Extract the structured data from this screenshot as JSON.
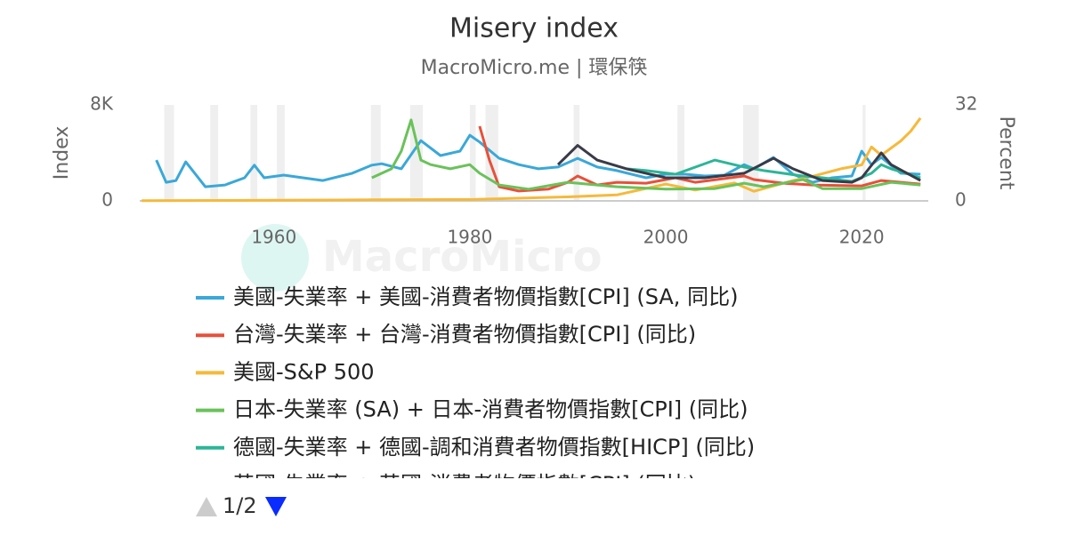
{
  "chart_data": {
    "type": "line",
    "title": "Misery index",
    "subtitle": "MacroMicro.me | 環保筷",
    "watermark": "MacroMicro",
    "y_label": "Index",
    "y2_label": "Percent",
    "xlim": [
      1946.3,
      2026.8
    ],
    "xticks": [
      1960,
      1980,
      2000,
      2020
    ],
    "ylim": [
      0,
      8000
    ],
    "yticks": [
      0,
      {
        "value": 8000,
        "label": "8K"
      }
    ],
    "y2lim": [
      0,
      32
    ],
    "y2ticks": [
      0,
      32
    ],
    "recessions": [
      [
        1948.8,
        1949.8
      ],
      [
        1953.5,
        1954.3
      ],
      [
        1957.6,
        1958.3
      ],
      [
        1960.3,
        1961.1
      ],
      [
        1969.9,
        1970.9
      ],
      [
        1973.9,
        1975.2
      ],
      [
        1980.0,
        1980.6
      ],
      [
        1981.6,
        1982.9
      ],
      [
        1990.6,
        1991.2
      ],
      [
        2001.2,
        2001.9
      ],
      [
        2007.9,
        2009.5
      ],
      [
        2020.1,
        2020.4
      ]
    ],
    "legend_page": "1/2",
    "series": [
      {
        "name": "美國-失業率 + 美國-消費者物價指數[CPI] (SA, 同比)",
        "color": "#3aa8d8",
        "axis": "y2",
        "x": [
          1948,
          1949,
          1950,
          1951,
          1953,
          1955,
          1957,
          1958,
          1959,
          1961,
          1965,
          1968,
          1970,
          1971,
          1973,
          1975,
          1977,
          1979,
          1980,
          1981,
          1983,
          1985,
          1987,
          1989,
          1991,
          1993,
          1995,
          1998,
          2000,
          2002,
          2004,
          2006,
          2008,
          2009,
          2011,
          2013,
          2015,
          2017,
          2019,
          2020,
          2021,
          2022,
          2024,
          2026
        ],
        "values": [
          13.6,
          6.2,
          6.8,
          13.0,
          4.7,
          5.3,
          7.7,
          11.9,
          7.7,
          8.6,
          6.8,
          9.2,
          11.9,
          12.4,
          10.7,
          20.1,
          15.1,
          16.6,
          21.9,
          19.6,
          14.2,
          12.1,
          10.7,
          11.3,
          14.2,
          11.3,
          10.1,
          7.7,
          8.9,
          8.9,
          8.3,
          8.6,
          12.1,
          10.7,
          14.5,
          8.9,
          6.2,
          7.7,
          8.3,
          16.6,
          12.1,
          14.5,
          9.2,
          8.9
        ]
      },
      {
        "name": "台灣-失業率 + 台灣-消費者物價指數[CPI] (同比)",
        "color": "#e8503a",
        "axis": "y2",
        "x": [
          1981,
          1982,
          1983,
          1985,
          1988,
          1990,
          1991,
          1993,
          1995,
          1998,
          2001,
          2003,
          2008,
          2009,
          2012,
          2015,
          2020,
          2022,
          2026
        ],
        "values": [
          24.9,
          13.6,
          4.7,
          3.3,
          3.9,
          6.2,
          8.3,
          5.3,
          6.2,
          5.9,
          7.7,
          6.2,
          8.3,
          7.1,
          5.9,
          5.3,
          5.0,
          6.8,
          5.6
        ]
      },
      {
        "name": "美國-S&P 500",
        "color": "#f6b93b",
        "axis": "y",
        "x": [
          1946.5,
          1960,
          1970,
          1980,
          1990,
          1995,
          2000,
          2003,
          2007,
          2009,
          2013,
          2015,
          2018,
          2020,
          2021,
          2022,
          2024,
          2025,
          2026
        ],
        "values": [
          15,
          55,
          90,
          110,
          330,
          500,
          1400,
          900,
          1500,
          800,
          1700,
          2050,
          2700,
          3000,
          4500,
          3800,
          5000,
          5800,
          6900
        ]
      },
      {
        "name": "日本-失業率 (SA) + 日本-消費者物價指數[CPI] (同比)",
        "color": "#6ac25a",
        "axis": "y2",
        "x": [
          1970,
          1972,
          1973,
          1974,
          1975,
          1976,
          1978,
          1980,
          1981,
          1983,
          1986,
          1990,
          1995,
          2000,
          2005,
          2008,
          2010,
          2014,
          2016,
          2020,
          2023,
          2026
        ],
        "values": [
          7.7,
          10.7,
          16.6,
          27.0,
          13.6,
          12.1,
          10.7,
          12.1,
          9.2,
          5.3,
          3.9,
          6.2,
          4.7,
          3.9,
          4.1,
          5.9,
          4.7,
          7.1,
          4.1,
          4.1,
          6.2,
          5.3
        ]
      },
      {
        "name": "德國-失業率 + 德國-調和消費者物價指數[HICP] (同比)",
        "color": "#2db597",
        "axis": "y2",
        "x": [
          1996,
          1998,
          2001,
          2005,
          2008,
          2010,
          2014,
          2016,
          2019,
          2021,
          2022,
          2023,
          2026
        ],
        "values": [
          10.7,
          10.1,
          8.9,
          13.6,
          11.3,
          10.1,
          8.3,
          7.7,
          6.5,
          9.2,
          12.1,
          10.7,
          7.7
        ]
      },
      {
        "name": "英國-失業率 + 英國-消費者物價指數[CPI] (同比)",
        "color": "#3a3a48",
        "axis": "y2",
        "x": [
          1989,
          1991,
          1993,
          1996,
          2000,
          2004,
          2008,
          2011,
          2013,
          2016,
          2019,
          2020,
          2022,
          2023,
          2026
        ],
        "values": [
          12.1,
          18.5,
          13.6,
          10.7,
          7.7,
          7.7,
          9.2,
          14.2,
          10.7,
          6.8,
          6.2,
          7.7,
          16.0,
          12.1,
          6.8
        ]
      }
    ]
  }
}
